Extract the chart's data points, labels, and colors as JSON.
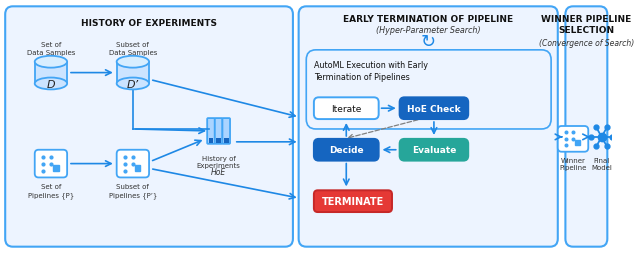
{
  "bg_color": "#ffffff",
  "blue_dark": "#1565C0",
  "blue_mid": "#1976D2",
  "blue_border": "#42A5F5",
  "teal": "#26A69A",
  "red": "#E53935",
  "red_dark": "#c62828",
  "blue_line": "#1E88E5",
  "section1_title": "HISTORY OF EXPERIMENTS",
  "section2_title": "EARLY TERMINATION OF PIPELINE",
  "section2_subtitle": "(Hyper-Parameter Search)",
  "section3_title": "WINNER PIPELINE\nSELECTION",
  "section3_subtitle": "(Convergence of Search)",
  "box_iterate": "Iterate",
  "box_hoe": "HoE Check",
  "box_decide": "Decide",
  "box_evaluate": "Evaluate",
  "box_terminate": "TERMINATE",
  "box_automl": "AutoML Execution with Early\nTermination of Pipelines",
  "label_D": "D",
  "label_Dprime": "D’",
  "label_set_data": "Set of\nData Samples",
  "label_subset_data": "Subset of\nData Samples",
  "label_set_pipeline": "Set of\nPipelines {P}",
  "label_subset_pipeline": "Subset of\nPipelines {P’}",
  "label_hoe_text": "History of\nExperiments",
  "label_hoe_italic": "HoE",
  "label_winner": "Winner\nPipeline",
  "label_final": "Final\nModel"
}
